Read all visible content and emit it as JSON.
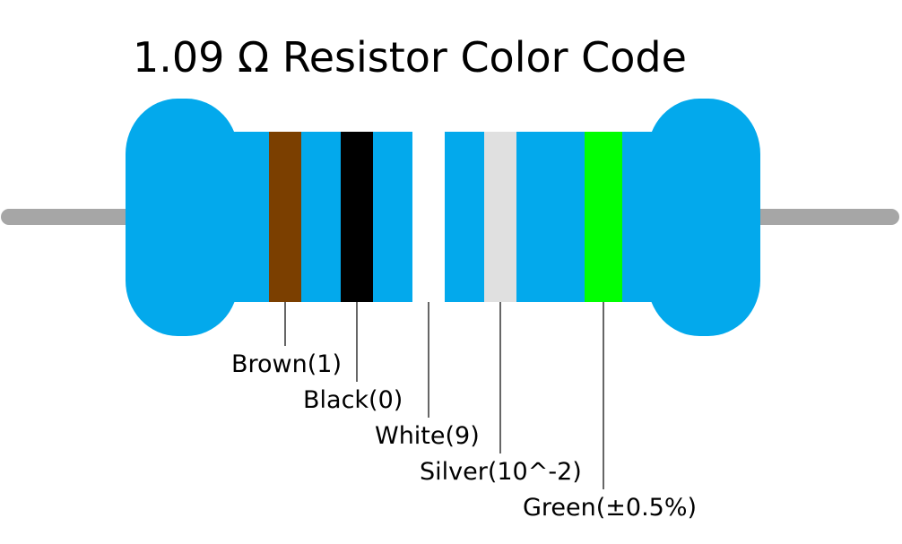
{
  "title": "1.09 Ω Resistor Color Code",
  "bands": [
    {
      "label": "Brown(1)"
    },
    {
      "label": "Black(0)"
    },
    {
      "label": "White(9)"
    },
    {
      "label": "Silver(10^-2)"
    },
    {
      "label": "Green(±0.5%)"
    }
  ]
}
